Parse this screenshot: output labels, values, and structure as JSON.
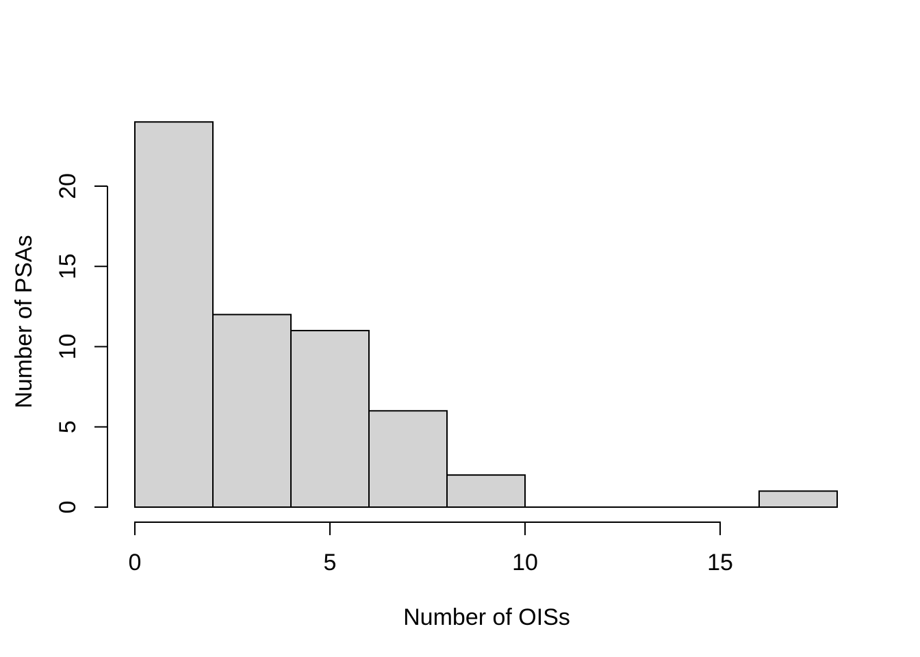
{
  "chart_data": {
    "type": "bar",
    "subtype": "histogram",
    "title": "",
    "xlabel": "Number of OISs",
    "ylabel": "Number of PSAs",
    "bin_edges": [
      0,
      2,
      4,
      6,
      8,
      10,
      12,
      14,
      16,
      18
    ],
    "counts": [
      24,
      12,
      11,
      6,
      2,
      0,
      0,
      0,
      1
    ],
    "bins": [
      {
        "range": "0-2",
        "count": 24
      },
      {
        "range": "2-4",
        "count": 12
      },
      {
        "range": "4-6",
        "count": 11
      },
      {
        "range": "6-8",
        "count": 6
      },
      {
        "range": "8-10",
        "count": 2
      },
      {
        "range": "10-12",
        "count": 0
      },
      {
        "range": "12-14",
        "count": 0
      },
      {
        "range": "14-16",
        "count": 0
      },
      {
        "range": "16-18",
        "count": 1
      }
    ],
    "x_ticks": [
      0,
      5,
      10,
      15
    ],
    "y_ticks": [
      0,
      5,
      10,
      15,
      20
    ],
    "x_tick_labels": [
      "0",
      "5",
      "10",
      "15"
    ],
    "y_tick_labels": [
      "0",
      "5",
      "10",
      "15",
      "20"
    ],
    "xlim": [
      0,
      18
    ],
    "ylim": [
      0,
      24
    ],
    "grid": false,
    "legend": false,
    "colors": {
      "bar_fill": "#d3d3d3",
      "bar_stroke": "#000000",
      "axis": "#000000",
      "text": "#000000",
      "background": "#ffffff"
    }
  }
}
